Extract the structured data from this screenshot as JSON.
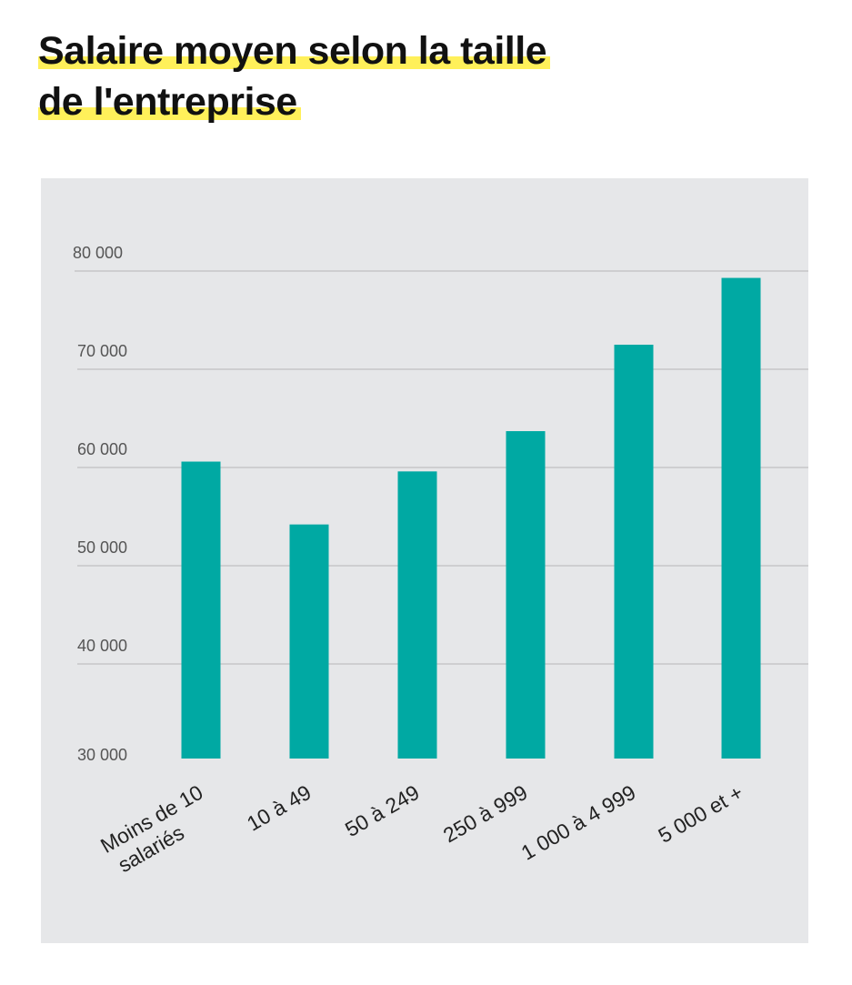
{
  "chart_data": {
    "type": "bar",
    "title_line1": "Salaire moyen selon la taille",
    "title_line2": "de l'entreprise",
    "categories": [
      "Moins de 10 salariés",
      "10 à 49",
      "50 à 249",
      "250 à 999",
      "1 000 à 4 999",
      "5 000 et +"
    ],
    "category_lines": [
      [
        "Moins de 10",
        "salariés"
      ],
      [
        "10 à 49"
      ],
      [
        "50 à 249"
      ],
      [
        "250 à 999"
      ],
      [
        "1 000 à 4 999"
      ],
      [
        "5 000 et +"
      ]
    ],
    "values": [
      60600,
      54200,
      59600,
      63700,
      72500,
      79300
    ],
    "ylim": [
      30000,
      80000
    ],
    "yticks": [
      30000,
      40000,
      50000,
      60000,
      70000,
      80000
    ],
    "ytick_labels": [
      "30 000",
      "40 000",
      "50 000",
      "60 000",
      "70 000",
      "80 000"
    ],
    "grid": true,
    "colors": {
      "bar": "#00a9a3",
      "panel": "#e6e7e9",
      "highlight": "#fff05a",
      "grid": "#bfc0c2"
    }
  }
}
